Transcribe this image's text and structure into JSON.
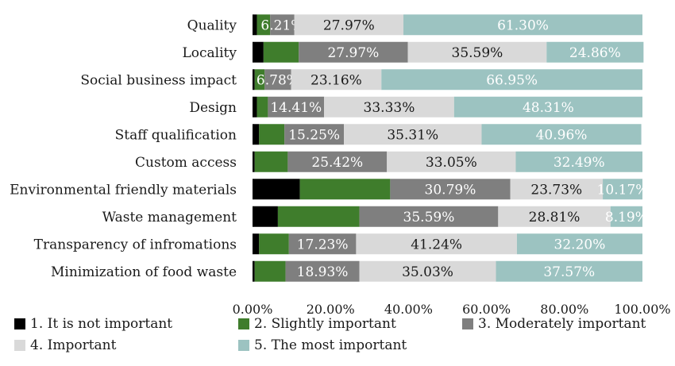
{
  "chart_data": {
    "type": "bar",
    "orientation": "horizontal",
    "stacked": true,
    "categories": [
      "Quality",
      "Locality",
      "Social business impact",
      "Design",
      "Staff qualification",
      "Custom access",
      "Environmental friendly materials",
      "Waste management",
      "Transparency of infromations",
      "Minimization of food waste"
    ],
    "series": [
      {
        "name": "1. It is not important",
        "color": "#000000",
        "values": [
          1.13,
          2.82,
          0.56,
          1.13,
          1.69,
          0.56,
          12.15,
          6.5,
          1.69,
          0.56
        ]
      },
      {
        "name": "2. Slightly important",
        "color": "#3f7d2c",
        "values": [
          3.39,
          9.04,
          2.55,
          2.82,
          6.5,
          8.48,
          23.16,
          20.91,
          7.64,
          7.91
        ]
      },
      {
        "name": "3. Moderately important",
        "color": "#7f7f7f",
        "values": [
          6.21,
          27.97,
          6.78,
          14.41,
          15.25,
          25.42,
          30.79,
          35.59,
          17.23,
          18.93
        ]
      },
      {
        "name": "4. Important",
        "color": "#d9d9d9",
        "values": [
          27.97,
          35.59,
          23.16,
          33.33,
          35.31,
          33.05,
          23.73,
          28.81,
          41.24,
          35.03
        ]
      },
      {
        "name": "5. The most important",
        "color": "#9cc3c1",
        "values": [
          61.3,
          24.86,
          66.95,
          48.31,
          40.96,
          32.49,
          10.17,
          8.19,
          32.2,
          37.57
        ]
      }
    ],
    "data_labels": [
      [
        null,
        null,
        "6.21%",
        "27.97%",
        "61.30%"
      ],
      [
        null,
        null,
        "27.97%",
        "35.59%",
        "24.86%"
      ],
      [
        null,
        null,
        "6.78%",
        "23.16%",
        "66.95%"
      ],
      [
        null,
        null,
        "14.41%",
        "33.33%",
        "48.31%"
      ],
      [
        null,
        null,
        "15.25%",
        "35.31%",
        "40.96%"
      ],
      [
        null,
        null,
        "25.42%",
        "33.05%",
        "32.49%"
      ],
      [
        null,
        null,
        "30.79%",
        "23.73%",
        "10.17%"
      ],
      [
        null,
        null,
        "35.59%",
        "28.81%",
        "8.19%"
      ],
      [
        null,
        null,
        "17.23%",
        "41.24%",
        "32.20%"
      ],
      [
        null,
        null,
        "18.93%",
        "35.03%",
        "37.57%"
      ]
    ],
    "label_colors": [
      "#ffffff",
      "#ffffff",
      "#ffffff",
      "#1a1a1a",
      "#ffffff"
    ],
    "xlim": [
      0,
      100
    ],
    "xticks": [
      "0.00%",
      "20.00%",
      "40.00%",
      "60.00%",
      "80.00%",
      "100.00%"
    ],
    "grid": false,
    "legend_position": "bottom",
    "title": "",
    "xlabel": "",
    "ylabel": ""
  }
}
